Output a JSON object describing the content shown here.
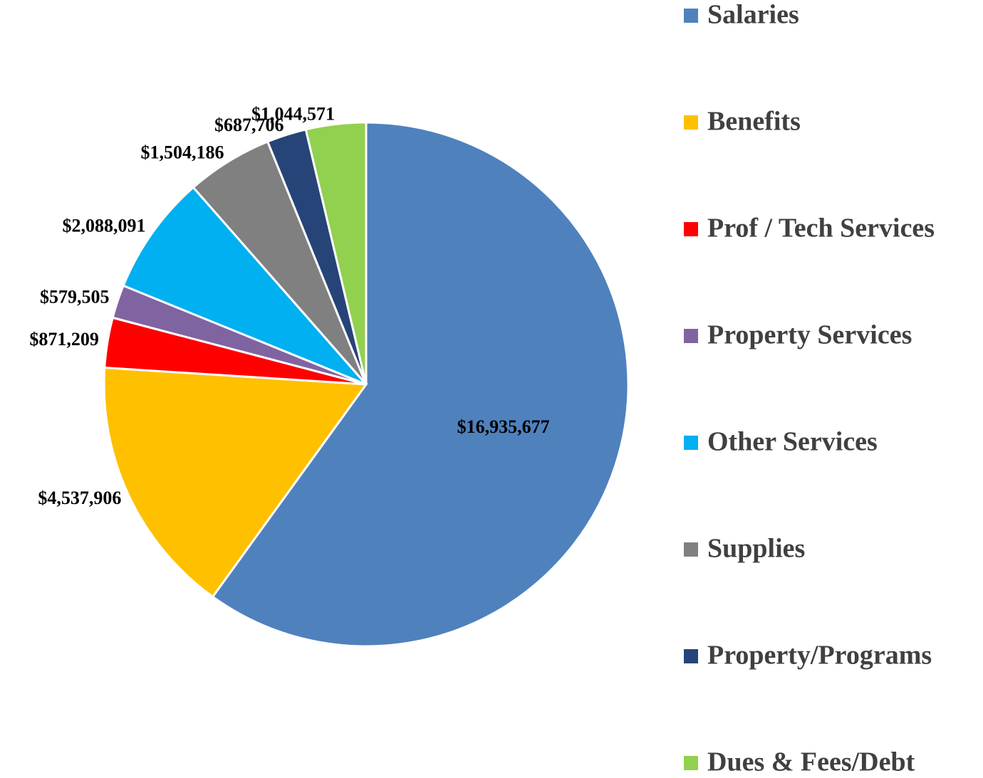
{
  "chart_data": {
    "type": "pie",
    "categories": [
      "Salaries",
      "Benefits",
      "Prof / Tech Services",
      "Property Services",
      "Other Services",
      "Supplies",
      "Property/Programs",
      "Dues & Fees/Debt"
    ],
    "values": [
      16935677,
      4537906,
      871209,
      579505,
      2088091,
      1504186,
      687706,
      1044571
    ],
    "value_labels": [
      "$16,935,677",
      "$4,537,906",
      "$871,209",
      "$579,505",
      "$2,088,091",
      "$1,504,186",
      "$687,706",
      "$1,044,571"
    ],
    "colors": [
      "#4f81bd",
      "#ffc000",
      "#ff0000",
      "#8064a2",
      "#00b0f0",
      "#808080",
      "#264478",
      "#92d050"
    ],
    "legend": "right"
  }
}
